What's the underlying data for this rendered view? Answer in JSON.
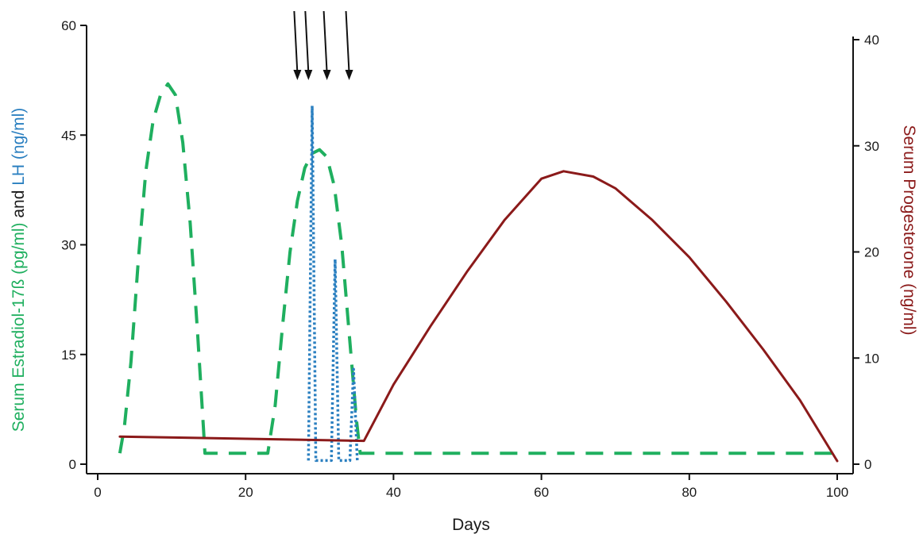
{
  "chart_data": {
    "type": "line",
    "xlabel": "Days",
    "xlim": [
      0,
      100
    ],
    "x_ticks": [
      0,
      20,
      40,
      60,
      80,
      100
    ],
    "y_left": {
      "label_parts": [
        {
          "text": "Serum Estradiol-17ß (pg/ml)",
          "color": "#1faf5f"
        },
        {
          "text": " and ",
          "color": "#1a1a1a"
        },
        {
          "text": "LH (ng/ml)",
          "color": "#2a7fc0"
        }
      ],
      "ylim": [
        0,
        60
      ],
      "ticks": [
        0,
        15,
        30,
        45,
        60
      ]
    },
    "y_right": {
      "label": "Serum Progesterone (ng/ml)",
      "color": "#8b1a1a",
      "ylim": [
        0,
        40
      ],
      "ticks": [
        0,
        10,
        20,
        30,
        40
      ]
    },
    "series": [
      {
        "axis": "left",
        "color": "#1faf5f",
        "style": "dashed",
        "points": [
          [
            3,
            1.5
          ],
          [
            3.6,
            5
          ],
          [
            4.5,
            14
          ],
          [
            5.5,
            28
          ],
          [
            6.5,
            40
          ],
          [
            7.5,
            47
          ],
          [
            8.5,
            50.5
          ],
          [
            9.5,
            52
          ],
          [
            10.5,
            50.5
          ],
          [
            11.5,
            44
          ],
          [
            12.5,
            33
          ],
          [
            13.5,
            18
          ],
          [
            14.3,
            5
          ],
          [
            14.5,
            1.5
          ],
          [
            23,
            1.5
          ],
          [
            24,
            8
          ],
          [
            25,
            19
          ],
          [
            26,
            29
          ],
          [
            27,
            36
          ],
          [
            28,
            40.5
          ],
          [
            29,
            42.5
          ],
          [
            30,
            43
          ],
          [
            31,
            42
          ],
          [
            32,
            38
          ],
          [
            33,
            30
          ],
          [
            34,
            18
          ],
          [
            35,
            6
          ],
          [
            35.5,
            1.5
          ],
          [
            100,
            1.5
          ]
        ]
      },
      {
        "axis": "left",
        "color": "#2a7fc0",
        "style": "dotted",
        "points": [
          [
            28.5,
            0.5
          ],
          [
            29,
            49
          ],
          [
            29.5,
            0.5
          ],
          [
            31.6,
            0.5
          ],
          [
            32.1,
            28
          ],
          [
            32.6,
            0.5
          ],
          [
            34.1,
            0.5
          ],
          [
            34.6,
            13
          ],
          [
            35.1,
            0.5
          ]
        ]
      },
      {
        "axis": "right",
        "color": "#8b1a1a",
        "style": "solid",
        "points": [
          [
            3,
            2.6
          ],
          [
            36,
            2.2
          ],
          [
            40,
            7.5
          ],
          [
            45,
            13
          ],
          [
            50,
            18.2
          ],
          [
            55,
            23
          ],
          [
            60,
            26.9
          ],
          [
            63,
            27.6
          ],
          [
            67,
            27.1
          ],
          [
            70,
            26
          ],
          [
            75,
            23
          ],
          [
            80,
            19.5
          ],
          [
            85,
            15.3
          ],
          [
            90,
            10.8
          ],
          [
            95,
            6
          ],
          [
            100,
            0.3
          ]
        ]
      }
    ],
    "annotations": {
      "arrow_days": [
        27,
        28.5,
        31,
        34
      ]
    },
    "grid": false,
    "legend": "none"
  }
}
